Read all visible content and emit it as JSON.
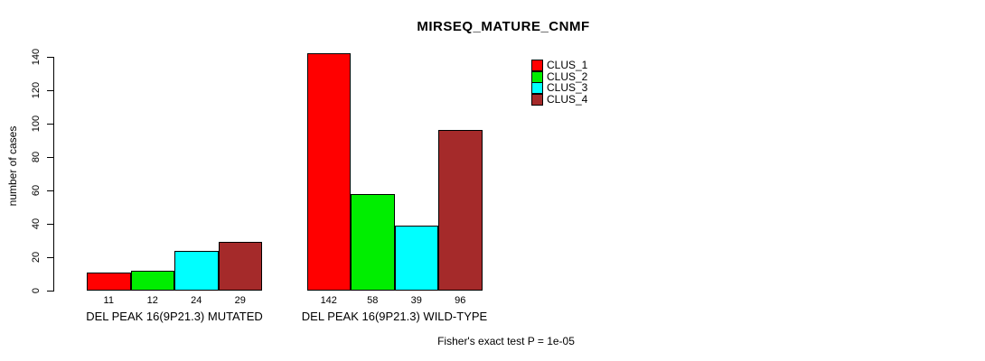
{
  "title": "MIRSEQ_MATURE_CNMF",
  "annotation": "Fisher's exact test P = 1e-05",
  "chart_data": {
    "type": "bar",
    "title": "MIRSEQ_MATURE_CNMF",
    "xlabel": "",
    "ylabel": "number of cases",
    "ylim": [
      0,
      140
    ],
    "yticks": [
      0,
      20,
      40,
      60,
      80,
      100,
      120,
      140
    ],
    "grid": false,
    "legend_position": "top-right",
    "categories": [
      "DEL PEAK 16(9P21.3) MUTATED",
      "DEL PEAK 16(9P21.3) WILD-TYPE"
    ],
    "series": [
      {
        "name": "CLUS_1",
        "color": "#FF0000",
        "values": [
          11,
          142
        ]
      },
      {
        "name": "CLUS_2",
        "color": "#00EE00",
        "values": [
          12,
          58
        ]
      },
      {
        "name": "CLUS_3",
        "color": "#00FFFF",
        "values": [
          24,
          39
        ]
      },
      {
        "name": "CLUS_4",
        "color": "#A52A2A",
        "values": [
          29,
          96
        ]
      }
    ],
    "bar_value_labels": true,
    "annotation": "Fisher's exact test P = 1e-05"
  }
}
